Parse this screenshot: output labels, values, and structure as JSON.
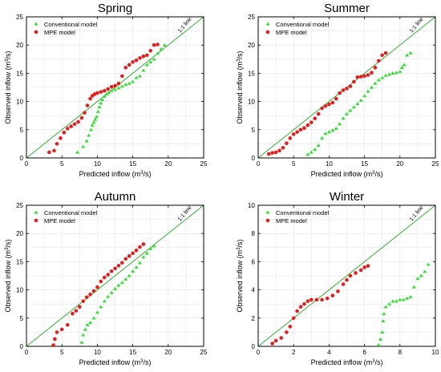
{
  "figure": {
    "background": "#ffffff"
  },
  "colors": {
    "conventional": "#33dd33",
    "mpe": "#e02020",
    "one_to_one": "#33aa33",
    "frame": "#000000",
    "grid": "#e6e6e6"
  },
  "chart_data": [
    {
      "type": "scatter",
      "title": "Spring",
      "xlabel": "Predicted inflow (m³/s)",
      "ylabel": "Observed inflow (m³/s)",
      "xlim": [
        0,
        25
      ],
      "ylim": [
        0,
        25
      ],
      "xticks": [
        "0",
        "5",
        "10",
        "15",
        "20",
        "25"
      ],
      "yticks": [
        "0",
        "5",
        "10",
        "15",
        "20",
        "25"
      ],
      "grid": true,
      "legend_position": "top-left",
      "line_label": "1:1 line",
      "series": [
        {
          "name": "Conventional model",
          "marker": "triangle",
          "x": [
            7.2,
            8.0,
            8.5,
            8.8,
            9.1,
            9.3,
            9.5,
            9.7,
            9.9,
            10.1,
            10.3,
            10.5,
            10.7,
            11.0,
            11.3,
            11.6,
            12.0,
            12.5,
            13.0,
            13.5,
            14.0,
            14.5,
            15.0,
            15.5,
            16.0,
            16.5,
            17.0,
            17.5,
            18.0,
            18.5,
            19.0,
            19.5
          ],
          "y": [
            1.0,
            2.0,
            3.0,
            4.0,
            5.0,
            5.8,
            6.3,
            6.8,
            7.3,
            8.2,
            9.0,
            9.7,
            10.3,
            10.9,
            11.3,
            11.6,
            11.9,
            12.1,
            12.4,
            12.7,
            13.0,
            13.2,
            13.5,
            14.2,
            14.5,
            15.5,
            16.5,
            17.0,
            17.5,
            18.5,
            19.3,
            20.0
          ]
        },
        {
          "name": "MPE model",
          "marker": "circle",
          "x": [
            3.2,
            3.9,
            4.3,
            4.8,
            5.3,
            5.8,
            6.3,
            6.8,
            7.3,
            7.8,
            8.2,
            8.6,
            9.0,
            9.3,
            9.6,
            10.0,
            10.5,
            11.0,
            11.5,
            12.0,
            12.5,
            13.0,
            13.5,
            14.0,
            14.5,
            15.0,
            15.5,
            16.0,
            16.5,
            17.0,
            17.5,
            18.0,
            18.5
          ],
          "y": [
            1.0,
            1.3,
            2.5,
            3.5,
            4.5,
            5.2,
            5.6,
            6.0,
            6.4,
            7.1,
            8.0,
            9.3,
            10.5,
            11.0,
            11.3,
            11.5,
            11.7,
            11.9,
            12.2,
            12.6,
            12.8,
            13.2,
            14.5,
            16.0,
            16.5,
            17.0,
            17.3,
            17.7,
            18.0,
            18.2,
            19.0,
            20.0,
            20.1
          ]
        }
      ]
    },
    {
      "type": "scatter",
      "title": "Summer",
      "xlabel": "Predicted inflow (m³/s)",
      "ylabel": "Observed inflow (m³/s)",
      "xlim": [
        0,
        25
      ],
      "ylim": [
        0,
        25
      ],
      "xticks": [
        "0",
        "5",
        "10",
        "15",
        "20",
        "25"
      ],
      "yticks": [
        "0",
        "5",
        "10",
        "15",
        "20",
        "25"
      ],
      "grid": true,
      "legend_position": "top-left",
      "line_label": "1:1 line",
      "series": [
        {
          "name": "Conventional model",
          "marker": "triangle",
          "x": [
            7.0,
            7.5,
            8.0,
            8.5,
            9.0,
            9.5,
            10.0,
            10.5,
            11.0,
            11.5,
            12.0,
            12.5,
            13.0,
            13.5,
            14.0,
            14.5,
            15.0,
            15.5,
            16.0,
            16.5,
            17.0,
            17.5,
            18.0,
            18.5,
            19.0,
            19.5,
            20.0,
            20.3,
            20.6,
            21.0,
            21.5
          ],
          "y": [
            0.6,
            1.0,
            1.5,
            2.2,
            3.5,
            4.3,
            4.6,
            4.9,
            5.2,
            6.0,
            7.0,
            7.8,
            8.4,
            9.0,
            9.6,
            10.2,
            11.0,
            11.8,
            12.5,
            13.2,
            13.8,
            14.2,
            14.6,
            14.8,
            15.0,
            15.1,
            15.3,
            16.0,
            16.5,
            18.2,
            18.6
          ]
        },
        {
          "name": "MPE model",
          "marker": "circle",
          "x": [
            1.5,
            2.0,
            2.5,
            3.0,
            3.5,
            4.0,
            4.5,
            5.0,
            5.5,
            6.0,
            6.5,
            7.0,
            7.5,
            8.0,
            8.5,
            9.0,
            9.5,
            10.0,
            10.5,
            11.0,
            11.5,
            12.0,
            12.5,
            13.0,
            13.5,
            14.0,
            14.5,
            15.0,
            15.5,
            16.0,
            16.5,
            17.0,
            17.5,
            18.0
          ],
          "y": [
            0.7,
            0.9,
            1.0,
            1.3,
            1.8,
            2.6,
            3.5,
            4.2,
            4.6,
            5.0,
            5.3,
            5.8,
            6.3,
            7.0,
            7.8,
            8.8,
            9.2,
            9.5,
            9.8,
            10.5,
            11.5,
            12.0,
            12.3,
            12.7,
            13.5,
            14.3,
            14.4,
            14.5,
            14.7,
            15.1,
            16.0,
            17.2,
            18.2,
            18.6
          ]
        }
      ]
    },
    {
      "type": "scatter",
      "title": "Autumn",
      "xlabel": "Predicted inflow (m³/s)",
      "ylabel": "Observed inflow (m³/s)",
      "xlim": [
        0,
        25
      ],
      "ylim": [
        0,
        25
      ],
      "xticks": [
        "0",
        "5",
        "10",
        "15",
        "20",
        "25"
      ],
      "yticks": [
        "0",
        "5",
        "10",
        "15",
        "20",
        "25"
      ],
      "grid": true,
      "legend_position": "top-left",
      "line_label": "1:1 line",
      "series": [
        {
          "name": "Conventional model",
          "marker": "triangle",
          "x": [
            7.8,
            8.0,
            8.3,
            8.6,
            9.0,
            9.5,
            10.0,
            10.5,
            11.0,
            11.5,
            12.0,
            12.5,
            13.0,
            13.5,
            14.0,
            14.5,
            15.0,
            15.5,
            16.0,
            16.5,
            17.0,
            17.5,
            18.0
          ],
          "y": [
            0.7,
            2.0,
            3.0,
            3.8,
            4.2,
            5.0,
            6.0,
            7.0,
            8.0,
            8.8,
            9.5,
            10.2,
            10.8,
            11.3,
            11.9,
            12.5,
            13.3,
            14.0,
            14.8,
            15.8,
            16.5,
            17.3,
            17.8
          ]
        },
        {
          "name": "MPE model",
          "marker": "circle",
          "x": [
            3.8,
            4.0,
            4.3,
            5.0,
            5.8,
            6.5,
            7.0,
            7.5,
            8.0,
            8.5,
            9.0,
            9.5,
            10.0,
            10.5,
            11.0,
            11.5,
            12.0,
            12.5,
            13.0,
            13.5,
            14.0,
            14.5,
            15.0,
            15.5,
            16.0,
            16.5
          ],
          "y": [
            0.2,
            1.3,
            2.5,
            3.0,
            3.8,
            5.8,
            6.3,
            7.0,
            8.0,
            8.7,
            9.2,
            9.8,
            10.5,
            11.5,
            12.2,
            12.7,
            13.3,
            13.8,
            14.3,
            14.8,
            15.5,
            16.0,
            16.5,
            17.0,
            17.6,
            18.1
          ]
        }
      ]
    },
    {
      "type": "scatter",
      "title": "Winter",
      "xlabel": "Predicted inflow (m³/s)",
      "ylabel": "Observed inflow (m³/s)",
      "xlim": [
        0,
        10
      ],
      "ylim": [
        0,
        10
      ],
      "xticks": [
        "0",
        "2",
        "4",
        "6",
        "8",
        "10"
      ],
      "yticks": [
        "0",
        "2",
        "4",
        "6",
        "8",
        "10"
      ],
      "grid": true,
      "legend_position": "top-left",
      "line_label": "1:1 line",
      "series": [
        {
          "name": "Conventional model",
          "marker": "triangle",
          "x": [
            6.8,
            6.9,
            7.0,
            7.05,
            7.1,
            7.2,
            7.4,
            7.6,
            7.8,
            8.0,
            8.2,
            8.4,
            8.6,
            8.8,
            9.0,
            9.2,
            9.4,
            9.6
          ],
          "y": [
            0.1,
            0.5,
            1.0,
            1.8,
            2.3,
            2.8,
            3.0,
            3.2,
            3.2,
            3.3,
            3.3,
            3.4,
            3.5,
            4.2,
            4.8,
            5.0,
            5.3,
            5.8
          ]
        },
        {
          "name": "MPE model",
          "marker": "circle",
          "x": [
            0.8,
            1.0,
            1.3,
            1.6,
            1.8,
            2.0,
            2.2,
            2.4,
            2.6,
            2.8,
            3.0,
            3.3,
            3.6,
            3.9,
            4.2,
            4.5,
            4.8,
            5.0,
            5.2,
            5.5,
            5.8,
            6.0,
            6.2
          ],
          "y": [
            0.2,
            0.4,
            0.6,
            1.0,
            1.4,
            2.0,
            2.5,
            2.8,
            3.0,
            3.2,
            3.3,
            3.3,
            3.3,
            3.4,
            3.6,
            3.9,
            4.4,
            4.7,
            5.0,
            5.2,
            5.4,
            5.6,
            5.7
          ]
        }
      ]
    }
  ]
}
